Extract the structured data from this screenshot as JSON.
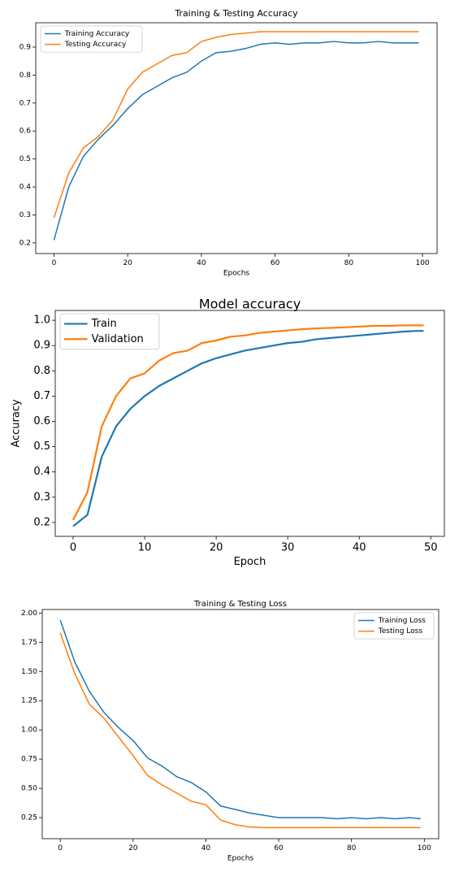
{
  "chart_data": [
    {
      "type": "line",
      "title": "Training & Testing Accuracy",
      "xlabel": "Epochs",
      "legend": "upper left",
      "x": [
        0,
        4,
        8,
        12,
        16,
        20,
        24,
        28,
        32,
        36,
        40,
        44,
        48,
        52,
        56,
        60,
        64,
        68,
        72,
        76,
        80,
        84,
        88,
        92,
        96,
        99
      ],
      "xlim": [
        -4.95,
        103.95
      ],
      "ylim": [
        0.162,
        0.987
      ],
      "xticks": [
        0,
        20,
        40,
        60,
        80,
        100
      ],
      "yticks": [
        0.2,
        0.3,
        0.4,
        0.5,
        0.6,
        0.7,
        0.8,
        0.9
      ],
      "series": [
        {
          "name": "Training Accuracy",
          "color": "#1f77b4",
          "values": [
            0.21,
            0.4,
            0.51,
            0.57,
            0.62,
            0.68,
            0.73,
            0.76,
            0.79,
            0.81,
            0.85,
            0.88,
            0.885,
            0.895,
            0.91,
            0.915,
            0.91,
            0.915,
            0.915,
            0.92,
            0.915,
            0.915,
            0.92,
            0.915,
            0.915,
            0.915
          ]
        },
        {
          "name": "Testing Accuracy",
          "color": "#ff7f0e",
          "values": [
            0.29,
            0.45,
            0.54,
            0.58,
            0.64,
            0.75,
            0.81,
            0.84,
            0.87,
            0.88,
            0.92,
            0.935,
            0.945,
            0.95,
            0.955,
            0.955,
            0.955,
            0.955,
            0.955,
            0.955,
            0.955,
            0.955,
            0.955,
            0.955,
            0.955,
            0.955
          ]
        }
      ]
    },
    {
      "type": "line",
      "title": "Model accuracy",
      "xlabel": "Epoch",
      "ylabel": "Accuracy",
      "legend": "upper left",
      "x": [
        0,
        2,
        4,
        6,
        8,
        10,
        12,
        14,
        16,
        18,
        20,
        22,
        24,
        26,
        28,
        30,
        32,
        34,
        36,
        38,
        40,
        42,
        44,
        46,
        48,
        49
      ],
      "xlim": [
        -2.5,
        51.9
      ],
      "ylim": [
        0.145,
        1.039
      ],
      "xticks": [
        0,
        10,
        20,
        30,
        40,
        50
      ],
      "yticks": [
        0.2,
        0.3,
        0.4,
        0.5,
        0.6,
        0.7,
        0.8,
        0.9,
        {
          "value": 1.0,
          "label": "1.0"
        }
      ],
      "series": [
        {
          "name": "Train",
          "color": "#1f77b4",
          "values": [
            0.185,
            0.23,
            0.46,
            0.58,
            0.65,
            0.7,
            0.74,
            0.77,
            0.8,
            0.83,
            0.85,
            0.865,
            0.88,
            0.89,
            0.9,
            0.91,
            0.915,
            0.925,
            0.93,
            0.935,
            0.94,
            0.945,
            0.95,
            0.955,
            0.958,
            0.958
          ]
        },
        {
          "name": "Validation",
          "color": "#ff7f0e",
          "values": [
            0.21,
            0.32,
            0.58,
            0.7,
            0.77,
            0.79,
            0.84,
            0.87,
            0.88,
            0.91,
            0.92,
            0.935,
            0.94,
            0.95,
            0.955,
            0.96,
            0.965,
            0.968,
            0.97,
            0.972,
            0.975,
            0.978,
            0.978,
            0.98,
            0.98,
            0.98
          ]
        }
      ]
    },
    {
      "type": "line",
      "title": "Training & Testing Loss",
      "xlabel": "Epochs",
      "legend": "upper right",
      "x": [
        0,
        4,
        8,
        12,
        16,
        20,
        24,
        28,
        32,
        36,
        40,
        44,
        48,
        52,
        56,
        60,
        64,
        68,
        72,
        76,
        80,
        84,
        88,
        92,
        96,
        99
      ],
      "xlim": [
        -4.95,
        103.95
      ],
      "ylim": [
        0.07,
        2.03
      ],
      "xticks": [
        0,
        20,
        40,
        60,
        80,
        100
      ],
      "yticks": [
        0.25,
        {
          "value": 0.5,
          "label": "0.50"
        },
        0.75,
        {
          "value": 1.0,
          "label": "1.00"
        },
        1.25,
        {
          "value": 1.5,
          "label": "1.50"
        },
        1.75,
        {
          "value": 2.0,
          "label": "2.00"
        }
      ],
      "series": [
        {
          "name": "Training Loss",
          "color": "#1f77b4",
          "values": [
            1.94,
            1.58,
            1.33,
            1.15,
            1.02,
            0.91,
            0.76,
            0.69,
            0.6,
            0.55,
            0.47,
            0.35,
            0.32,
            0.29,
            0.27,
            0.25,
            0.25,
            0.25,
            0.25,
            0.24,
            0.25,
            0.24,
            0.25,
            0.24,
            0.25,
            0.24
          ]
        },
        {
          "name": "Testing Loss",
          "color": "#ff7f0e",
          "values": [
            1.83,
            1.48,
            1.22,
            1.1,
            0.94,
            0.78,
            0.61,
            0.53,
            0.46,
            0.39,
            0.36,
            0.23,
            0.19,
            0.17,
            0.165,
            0.165,
            0.165,
            0.165,
            0.165,
            0.165,
            0.165,
            0.165,
            0.165,
            0.165,
            0.165,
            0.165
          ]
        }
      ]
    }
  ]
}
